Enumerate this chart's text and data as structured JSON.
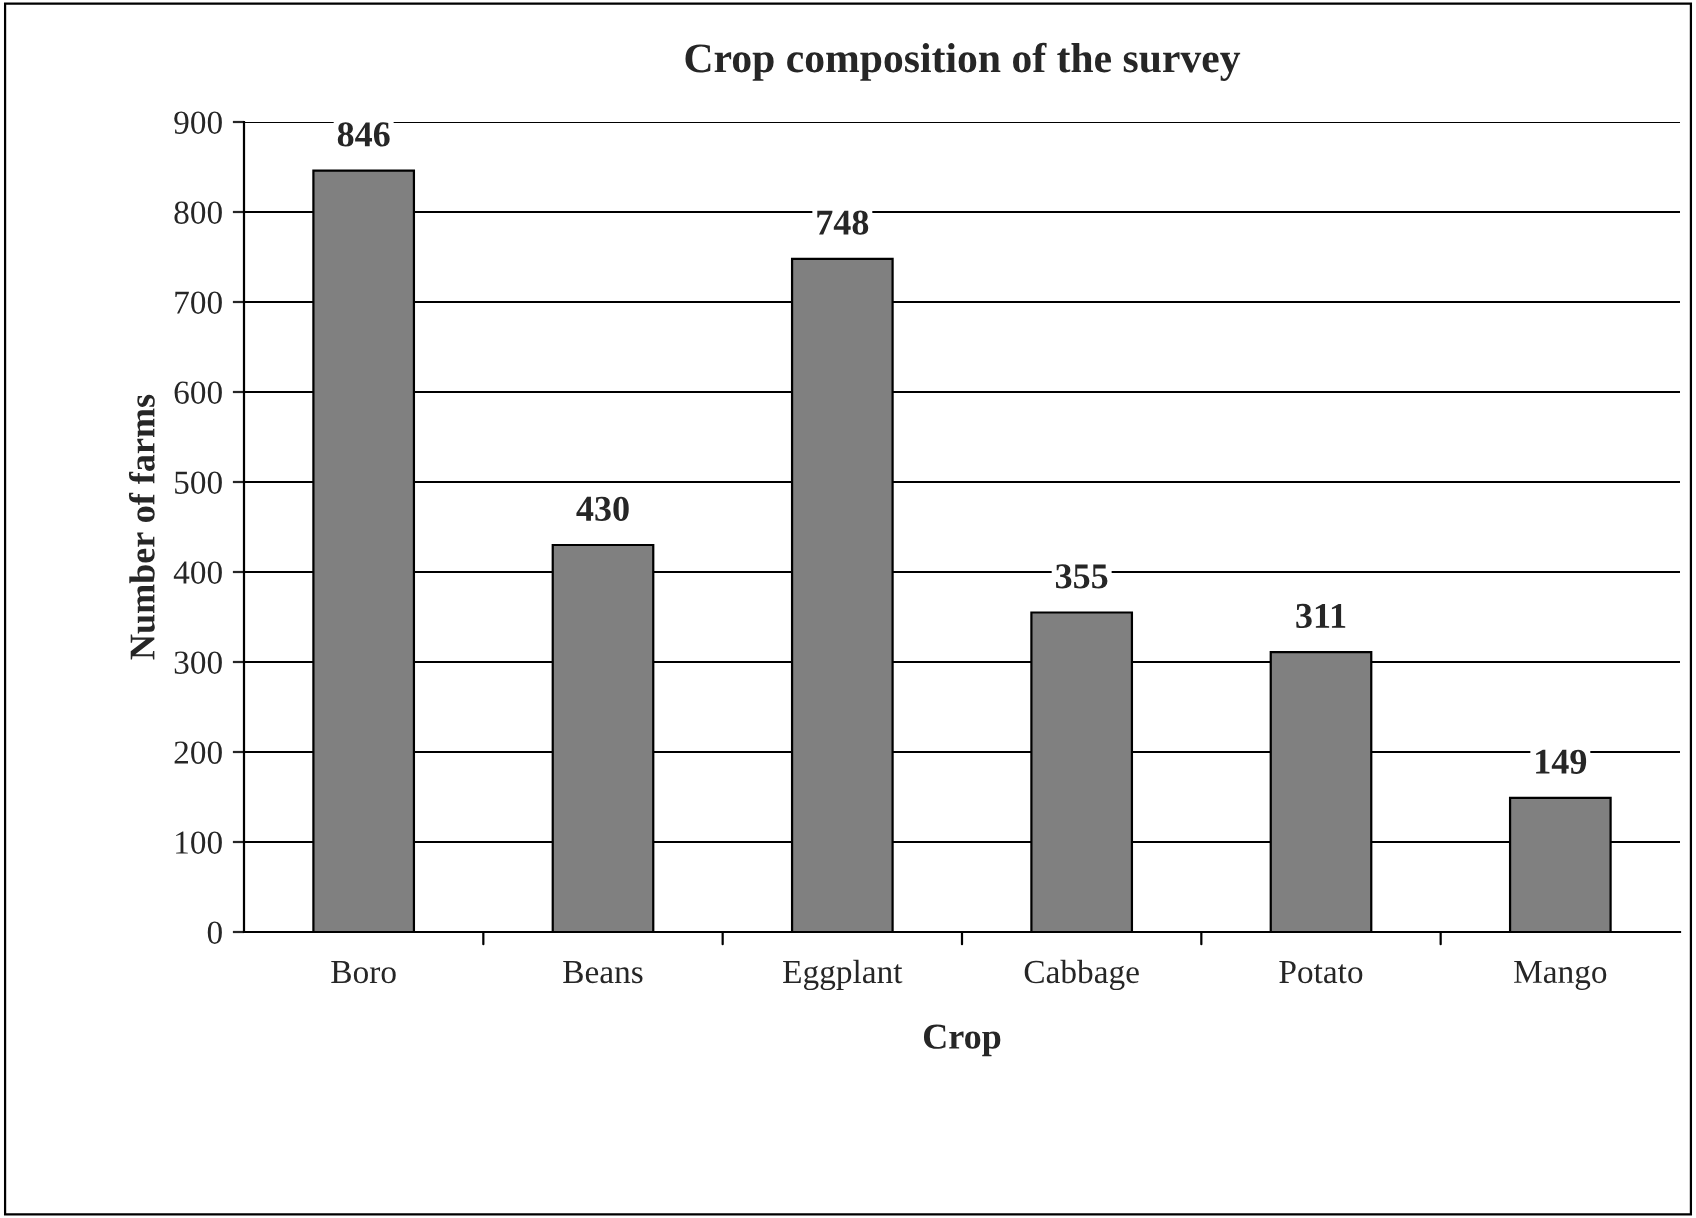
{
  "chart_data": {
    "type": "bar",
    "title": "Crop composition of the survey",
    "xlabel": "Crop",
    "ylabel": "Number of farms",
    "categories": [
      "Boro",
      "Beans",
      "Eggplant",
      "Cabbage",
      "Potato",
      "Mango"
    ],
    "values": [
      846,
      430,
      748,
      355,
      311,
      149
    ],
    "color": "#808080",
    "ylim": [
      0,
      900
    ],
    "yticks": [
      0,
      100,
      200,
      300,
      400,
      500,
      600,
      700,
      800,
      900
    ],
    "grid": "y",
    "data_labels": true,
    "legend": false
  }
}
